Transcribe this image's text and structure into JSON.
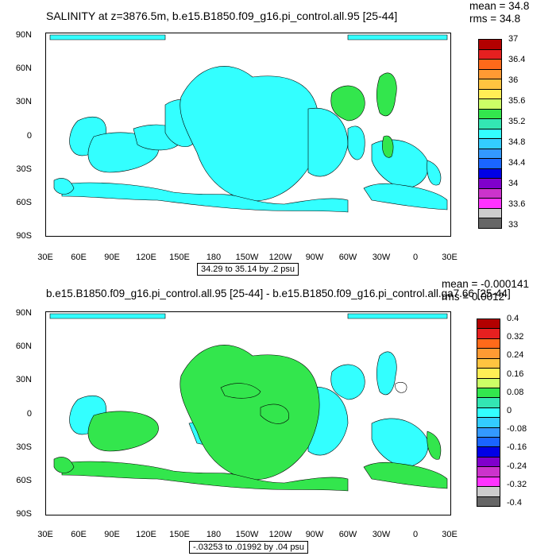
{
  "top": {
    "title": "SALINITY at z=3876.5m, b.e15.B1850.f09_g16.pi_control.all.95 [25-44]",
    "mean": "mean = 34.8",
    "rms": "rms = 34.8",
    "range": "34.29 to 35.14 by .2 psu",
    "colorbar": {
      "labels": [
        "37",
        "36.4",
        "36",
        "35.6",
        "35.2",
        "34.8",
        "34.4",
        "34",
        "33.6",
        "33"
      ],
      "colors": [
        "#b30000",
        "#e62020",
        "#ff6a1a",
        "#ff9a33",
        "#ffc440",
        "#ffee55",
        "#ccff66",
        "#33e64d",
        "#33e6b3",
        "#33ffff",
        "#33ccff",
        "#3399ff",
        "#1a66ff",
        "#0000e6",
        "#8000cc",
        "#cc33cc",
        "#ff33ff",
        "#cccccc",
        "#666666"
      ]
    }
  },
  "bottom": {
    "title": "b.e15.B1850.f09_g16.pi_control.all.95 [25-44] - b.e15.B1850.f09_g16.pi_control.all.ga7.66 [25-44]",
    "mean": "mean = -0.000141",
    "rms": "rms = 0.0012",
    "range": "-.03253 to .01992 by .04 psu",
    "colorbar": {
      "labels": [
        "0.4",
        "0.32",
        "0.24",
        "0.16",
        "0.08",
        "0",
        "-0.08",
        "-0.16",
        "-0.24",
        "-0.32",
        "-0.4"
      ],
      "colors": [
        "#b30000",
        "#e62020",
        "#ff6a1a",
        "#ff9a33",
        "#ffc440",
        "#ffee55",
        "#ccff66",
        "#33e64d",
        "#33e6b3",
        "#33ffff",
        "#33ccff",
        "#3399ff",
        "#1a66ff",
        "#0000e6",
        "#8000cc",
        "#cc33cc",
        "#ff33ff",
        "#cccccc",
        "#666666"
      ]
    }
  },
  "axes": {
    "lat_labels": [
      "90N",
      "60N",
      "30N",
      "0",
      "30S",
      "60S",
      "90S"
    ],
    "lon_labels": [
      "30E",
      "60E",
      "90E",
      "120E",
      "150E",
      "180",
      "150W",
      "120W",
      "90W",
      "60W",
      "30W",
      "0",
      "30E"
    ]
  },
  "map_colors": {
    "cyan": "#33ffff",
    "green": "#33e64d",
    "aqua": "#33e6b3"
  }
}
